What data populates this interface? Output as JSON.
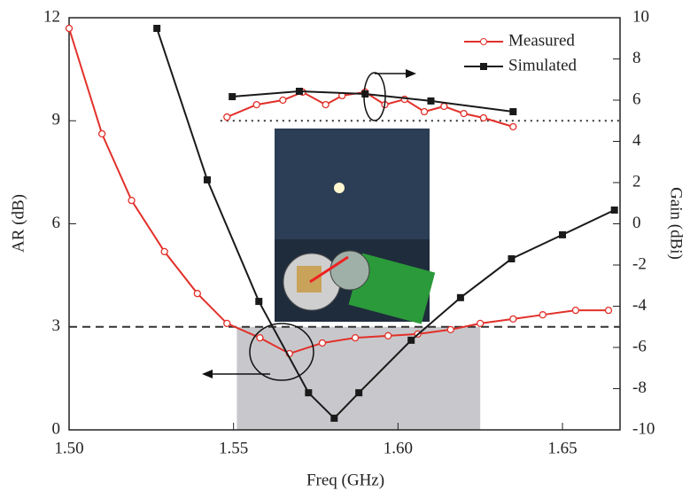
{
  "chart_data": {
    "type": "line",
    "xlabel": "Freq (GHz)",
    "ylabel": "AR (dB)",
    "y2label": "Gain (dBi)",
    "xlim": [
      1.5,
      1.6675
    ],
    "ylim": [
      0,
      12
    ],
    "y2lim": [
      -10,
      10
    ],
    "xticks": [
      {
        "value": 1.5,
        "label": "1.50"
      },
      1.55,
      {
        "value": 1.6,
        "label": "1.60"
      },
      1.65
    ],
    "yticks": [
      0,
      3,
      6,
      9,
      12
    ],
    "y2ticks": [
      -10,
      -8,
      -6,
      -4,
      -2,
      0,
      2,
      4,
      6,
      8,
      10
    ],
    "legend": "upper right",
    "series": [
      {
        "name": "Measured",
        "color": "#e2302a",
        "marker": "circle",
        "x": [
          1.5,
          1.51,
          1.519,
          1.529,
          1.539,
          1.548,
          1.558,
          1.567,
          1.577,
          1.587,
          1.597,
          1.606,
          1.616,
          1.625,
          1.635,
          1.644,
          1.654,
          1.664
        ],
        "values": [
          11.69,
          8.62,
          6.68,
          5.19,
          3.97,
          3.1,
          2.68,
          2.22,
          2.53,
          2.68,
          2.74,
          2.79,
          2.92,
          3.1,
          3.23,
          3.35,
          3.48,
          3.48
        ]
      },
      {
        "name": "Simulated",
        "color": "#1a1a1a",
        "marker": "square",
        "x": [
          1.5267,
          1.542,
          1.5577,
          1.5728,
          1.5806,
          1.5881,
          1.604,
          1.619,
          1.6345,
          1.65,
          1.6658
        ],
        "values": [
          11.69,
          7.28,
          3.74,
          1.08,
          0.34,
          1.08,
          2.61,
          3.85,
          4.98,
          5.68,
          6.4
        ]
      },
      {
        "color": "#e2302a",
        "marker": "circle",
        "axis": "y2",
        "x": [
          1.548,
          1.557,
          1.565,
          1.571,
          1.578,
          1.583,
          1.59,
          1.596,
          1.602,
          1.608,
          1.614,
          1.62,
          1.626,
          1.635
        ],
        "values": [
          5.18,
          5.78,
          6.0,
          6.39,
          5.78,
          6.22,
          6.39,
          5.78,
          6.04,
          5.44,
          5.7,
          5.35,
          5.14,
          4.71
        ]
      },
      {
        "color": "#1a1a1a",
        "marker": "square",
        "axis": "y2",
        "x": [
          1.5496,
          1.57,
          1.59,
          1.61,
          1.635
        ],
        "values": [
          6.17,
          6.43,
          6.3,
          5.96,
          5.44
        ]
      }
    ],
    "hlines": [
      {
        "value": 3,
        "axis": "y",
        "style": "dashed"
      },
      {
        "value": 5,
        "axis": "y2",
        "style": "dotted",
        "from": 1.546
      }
    ],
    "shaded_region": {
      "x": [
        1.551,
        1.625
      ],
      "y": [
        0,
        3
      ],
      "color": "#c8c8cc"
    }
  }
}
